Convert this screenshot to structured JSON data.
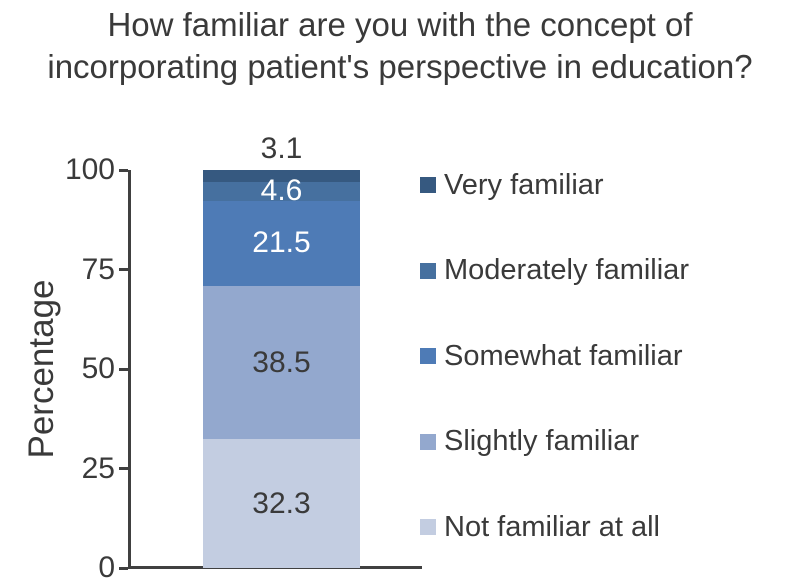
{
  "title": {
    "line1": "How familiar are you with the concept of",
    "line2": "incorporating patient's perspective in education?"
  },
  "chart_data": {
    "type": "bar",
    "stacked": true,
    "orientation": "vertical",
    "title": "How familiar are you with the concept of incorporating patient's perspective in education?",
    "ylabel": "Percentage",
    "ylim": [
      0,
      100
    ],
    "yticks": [
      0,
      25,
      50,
      75,
      100
    ],
    "grid": false,
    "legend_position": "right",
    "categories": [
      "(single stacked bar)"
    ],
    "series": [
      {
        "name": "Very familiar",
        "value": 3.1,
        "color": "#365980",
        "label_color": "#3a3a3a",
        "label_position": "above"
      },
      {
        "name": "Moderately familiar",
        "value": 4.6,
        "color": "#46709f",
        "label_color": "#ffffff",
        "label_position": "inside"
      },
      {
        "name": "Somewhat familiar",
        "value": 21.5,
        "color": "#4e7bb6",
        "label_color": "#ffffff",
        "label_position": "inside"
      },
      {
        "name": "Slightly familiar",
        "value": 38.5,
        "color": "#93a8ce",
        "label_color": "#3a3a3a",
        "label_position": "inside"
      },
      {
        "name": "Not familiar at all",
        "value": 32.3,
        "color": "#c3cde1",
        "label_color": "#3a3a3a",
        "label_position": "inside"
      }
    ]
  },
  "colors": {
    "axis": "#404040",
    "text": "#3a3a3a",
    "background": "#ffffff"
  }
}
